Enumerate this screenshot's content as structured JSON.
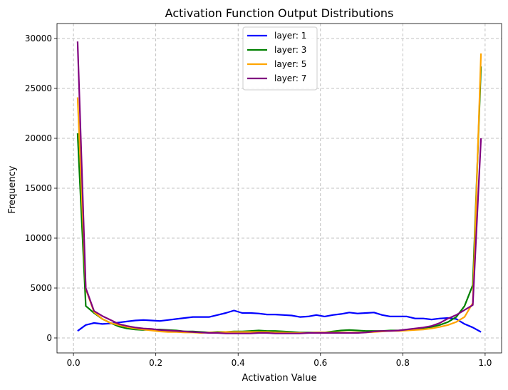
{
  "chart_data": {
    "type": "line",
    "title": "Activation Function Output Distributions",
    "xlabel": "Activation Value",
    "ylabel": "Frequency",
    "xlim": [
      -0.04,
      1.04
    ],
    "ylim": [
      -1500,
      31500
    ],
    "xticks": [
      0.0,
      0.2,
      0.4,
      0.6,
      0.8,
      1.0
    ],
    "xtick_labels": [
      "0.0",
      "0.2",
      "0.4",
      "0.6",
      "0.8",
      "1.0"
    ],
    "yticks": [
      0,
      5000,
      10000,
      15000,
      20000,
      25000,
      30000
    ],
    "ytick_labels": [
      "0",
      "5000",
      "10000",
      "15000",
      "20000",
      "25000",
      "30000"
    ],
    "grid": true,
    "legend_position": "upper-center",
    "x": [
      0.01,
      0.03,
      0.05,
      0.07,
      0.09,
      0.11,
      0.13,
      0.15,
      0.17,
      0.19,
      0.21,
      0.23,
      0.25,
      0.27,
      0.29,
      0.31,
      0.33,
      0.35,
      0.37,
      0.39,
      0.41,
      0.43,
      0.45,
      0.47,
      0.49,
      0.51,
      0.53,
      0.55,
      0.57,
      0.59,
      0.61,
      0.63,
      0.65,
      0.67,
      0.69,
      0.71,
      0.73,
      0.75,
      0.77,
      0.79,
      0.81,
      0.83,
      0.85,
      0.87,
      0.89,
      0.91,
      0.93,
      0.95,
      0.97,
      0.99
    ],
    "series": [
      {
        "name": "layer: 1",
        "color": "#0000ff",
        "values": [
          700,
          1300,
          1500,
          1400,
          1450,
          1550,
          1650,
          1750,
          1800,
          1750,
          1700,
          1800,
          1900,
          2000,
          2100,
          2100,
          2100,
          2300,
          2500,
          2750,
          2500,
          2500,
          2450,
          2350,
          2350,
          2300,
          2250,
          2100,
          2150,
          2300,
          2150,
          2300,
          2400,
          2550,
          2450,
          2500,
          2550,
          2300,
          2150,
          2150,
          2150,
          1950,
          1950,
          1850,
          1950,
          2000,
          1900,
          1400,
          1050,
          600
        ]
      },
      {
        "name": "layer: 3",
        "color": "#008000",
        "values": [
          20500,
          3200,
          2500,
          1900,
          1500,
          1150,
          950,
          850,
          800,
          850,
          850,
          800,
          750,
          650,
          650,
          600,
          550,
          600,
          600,
          650,
          650,
          700,
          750,
          700,
          700,
          650,
          600,
          550,
          550,
          550,
          550,
          650,
          750,
          800,
          750,
          700,
          700,
          700,
          750,
          750,
          800,
          850,
          1000,
          1100,
          1300,
          1600,
          2100,
          3200,
          5300,
          27200
        ]
      },
      {
        "name": "layer: 5",
        "color": "#ffa500",
        "values": [
          24100,
          4900,
          2600,
          1900,
          1500,
          1300,
          1100,
          950,
          850,
          750,
          650,
          600,
          600,
          550,
          550,
          500,
          550,
          550,
          600,
          600,
          600,
          600,
          600,
          600,
          550,
          550,
          500,
          500,
          500,
          550,
          550,
          550,
          550,
          550,
          550,
          550,
          600,
          650,
          700,
          700,
          750,
          800,
          850,
          950,
          1100,
          1300,
          1600,
          2100,
          3500,
          28500
        ]
      },
      {
        "name": "layer: 7",
        "color": "#800080",
        "values": [
          29700,
          5000,
          2700,
          2200,
          1800,
          1400,
          1200,
          1050,
          950,
          900,
          800,
          750,
          700,
          650,
          600,
          550,
          500,
          500,
          450,
          450,
          450,
          450,
          500,
          500,
          450,
          450,
          450,
          450,
          500,
          500,
          500,
          500,
          500,
          500,
          500,
          550,
          650,
          700,
          700,
          750,
          850,
          950,
          1050,
          1200,
          1500,
          1950,
          2300,
          2800,
          3300,
          20000
        ]
      }
    ]
  }
}
